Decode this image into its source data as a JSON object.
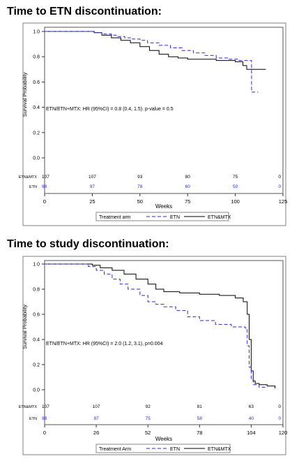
{
  "page": {
    "heading1": "Time to ETN discontinuation:",
    "heading2": "Time to study discontinuation:"
  },
  "colors": {
    "etn": "#2a2ad6",
    "etn_mtx": "#000000",
    "frame": "#7f7f7f"
  },
  "chart_data": [
    {
      "type": "line",
      "title": "Time to ETN discontinuation:",
      "xlabel": "Weeks",
      "ylabel": "Survival Probability",
      "xlim": [
        0,
        125
      ],
      "ylim": [
        0,
        1
      ],
      "x_ticks": [
        0,
        25,
        50,
        75,
        100,
        125
      ],
      "y_ticks": [
        0.0,
        0.2,
        0.4,
        0.6,
        0.8,
        1.0
      ],
      "y_tick_labels": [
        "0.0",
        "0.2",
        "0.4",
        "0.6",
        "0.8",
        "1.0"
      ],
      "annotation": "ETN/ETN+MTX: HR (95%CI) = 0.8 (0.4, 1.5). p-value = 0.5",
      "legend_title": "Treatment arm",
      "grid": false,
      "legend_position": "bottom",
      "series": [
        {
          "name": "ETN",
          "style": "dashed",
          "x": [
            0,
            24,
            26,
            30,
            35,
            38,
            42,
            46,
            50,
            54,
            60,
            66,
            72,
            78,
            84,
            90,
            96,
            102,
            105,
            108,
            108.5,
            112
          ],
          "y": [
            1.0,
            1.0,
            0.99,
            0.98,
            0.97,
            0.96,
            0.95,
            0.94,
            0.93,
            0.91,
            0.89,
            0.87,
            0.85,
            0.83,
            0.81,
            0.79,
            0.78,
            0.77,
            0.77,
            0.77,
            0.52,
            0.52
          ],
          "at_risk": [
            98,
            97,
            78,
            60,
            50,
            0
          ]
        },
        {
          "name": "ETN&MTX",
          "style": "solid",
          "x": [
            0,
            22,
            26,
            30,
            35,
            40,
            45,
            50,
            55,
            60,
            65,
            70,
            75,
            80,
            90,
            100,
            104,
            106,
            110,
            116
          ],
          "y": [
            1.0,
            1.0,
            0.99,
            0.97,
            0.95,
            0.93,
            0.91,
            0.88,
            0.85,
            0.82,
            0.8,
            0.79,
            0.78,
            0.78,
            0.77,
            0.76,
            0.73,
            0.7,
            0.7,
            0.7
          ],
          "at_risk": [
            107,
            107,
            93,
            80,
            75,
            0
          ]
        }
      ],
      "at_risk_times": [
        0,
        25,
        50,
        75,
        100,
        125
      ],
      "at_risk_labels": [
        "ETN&MTX",
        "ETN"
      ]
    },
    {
      "type": "line",
      "title": "Time to study discontinuation:",
      "xlabel": "Weeks",
      "ylabel": "Survival Probability",
      "xlim": [
        0,
        120
      ],
      "ylim": [
        0,
        1
      ],
      "x_ticks": [
        0,
        26,
        52,
        78,
        104,
        120
      ],
      "y_ticks": [
        0.0,
        0.2,
        0.4,
        0.6,
        0.8,
        1.0
      ],
      "y_tick_labels": [
        "0.0",
        "0.2",
        "0.4",
        "0.6",
        "0.8",
        "1.0"
      ],
      "annotation": "ETN/ETN+MTX: HR (95%CI) = 2.0 (1.2, 3.1), p=0.004",
      "legend_title": "Treatment Arm",
      "grid": false,
      "legend_position": "bottom",
      "series": [
        {
          "name": "ETN",
          "style": "dashed",
          "x": [
            0,
            18,
            22,
            26,
            30,
            34,
            38,
            42,
            48,
            52,
            56,
            60,
            66,
            72,
            78,
            86,
            94,
            101,
            102,
            103,
            104,
            105,
            108,
            112
          ],
          "y": [
            1.0,
            1.0,
            0.98,
            0.95,
            0.92,
            0.88,
            0.84,
            0.8,
            0.75,
            0.7,
            0.68,
            0.66,
            0.63,
            0.58,
            0.55,
            0.52,
            0.5,
            0.49,
            0.35,
            0.18,
            0.08,
            0.04,
            0.02,
            0.02
          ],
          "at_risk": [
            98,
            97,
            75,
            58,
            40,
            0
          ]
        },
        {
          "name": "ETN&MTX",
          "style": "solid",
          "x": [
            0,
            20,
            24,
            28,
            34,
            40,
            46,
            52,
            56,
            60,
            68,
            78,
            88,
            96,
            100,
            102,
            103,
            104,
            105,
            106,
            108,
            112,
            116
          ],
          "y": [
            1.0,
            1.0,
            0.99,
            0.97,
            0.95,
            0.92,
            0.88,
            0.84,
            0.8,
            0.78,
            0.77,
            0.76,
            0.75,
            0.73,
            0.7,
            0.6,
            0.4,
            0.15,
            0.07,
            0.05,
            0.04,
            0.03,
            0.01
          ],
          "at_risk": [
            107,
            107,
            92,
            81,
            63,
            0
          ]
        }
      ],
      "at_risk_times": [
        0,
        26,
        52,
        78,
        104,
        120
      ],
      "at_risk_labels": [
        "ETN&MTX",
        "ETN"
      ]
    }
  ]
}
